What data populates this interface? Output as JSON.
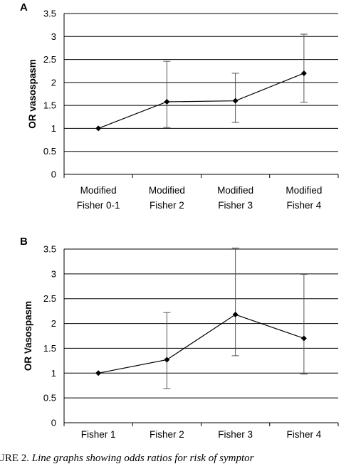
{
  "caption": {
    "lead": "URE 2.",
    "text": "Line graphs showing odds ratios for risk of symptor"
  },
  "chart_data": [
    {
      "panel": "A",
      "type": "line",
      "ylabel": "OR vasospasm",
      "xlabel": "",
      "ylim": [
        0,
        3.5
      ],
      "yticks": [
        "0",
        "0.5",
        "1",
        "1.5",
        "2",
        "2.5",
        "3",
        "3.5"
      ],
      "categories": [
        [
          "Modified",
          "Fisher 0-1"
        ],
        [
          "Modified",
          "Fisher 2"
        ],
        [
          "Modified",
          "Fisher 3"
        ],
        [
          "Modified",
          "Fisher 4"
        ]
      ],
      "values": [
        1.0,
        1.58,
        1.6,
        2.2
      ],
      "error_low": [
        1.0,
        1.02,
        1.13,
        1.57
      ],
      "error_high": [
        1.0,
        2.46,
        2.2,
        3.05
      ],
      "grid": true
    },
    {
      "panel": "B",
      "type": "line",
      "ylabel": "OR Vasospasm",
      "xlabel": "",
      "ylim": [
        0,
        3.5
      ],
      "yticks": [
        "0",
        "0.5",
        "1",
        "1.5",
        "2",
        "2.5",
        "3",
        "3.5"
      ],
      "categories": [
        [
          "Fisher 1"
        ],
        [
          "Fisher 2"
        ],
        [
          "Fisher 3"
        ],
        [
          "Fisher 4"
        ]
      ],
      "values": [
        1.0,
        1.27,
        2.18,
        1.7
      ],
      "error_low": [
        1.0,
        0.69,
        1.35,
        0.98
      ],
      "error_high": [
        1.0,
        2.22,
        3.52,
        2.99
      ],
      "grid": true
    }
  ]
}
